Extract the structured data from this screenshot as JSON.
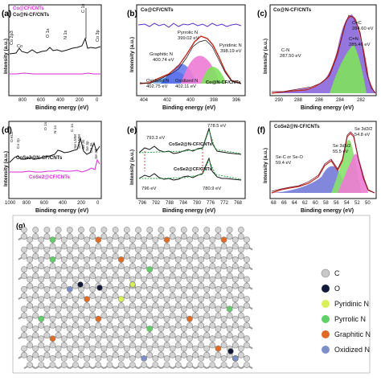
{
  "colors": {
    "black": "#111111",
    "magenta": "#d62bd6",
    "purple": "#5b2fc9",
    "red": "#c3271d",
    "blue": "#5f76ef",
    "pink": "#ee7bd6",
    "green": "#7fe25d",
    "lightPurple": "#8c6adb",
    "wine": "#6a0f2c",
    "orange": "#e06b25",
    "navy": "#111a3a",
    "graphene": "#c8c8c8"
  },
  "chart_data": [
    {
      "panel": "(a)",
      "type": "line",
      "xlabel": "Binding energy (eV)",
      "ylabel": "Intensity (a.u.)",
      "xlim": [
        1000,
        0
      ],
      "xticks": [
        "800",
        "600",
        "400",
        "200",
        "0"
      ],
      "legend": [
        "Co@CF/CNTs",
        "Co@N-CF/CNTs"
      ],
      "annotations": [
        "Co 2p3",
        "O 1s",
        "N 1s",
        "C 1s",
        "Co 3p",
        "Co"
      ],
      "series": [
        {
          "name": "Co@CF/CNTs",
          "color": "magenta"
        },
        {
          "name": "Co@N-CF/CNTs",
          "color": "black"
        }
      ]
    },
    {
      "panel": "(b)",
      "type": "line",
      "legend": [
        "Co@CF/CNTs"
      ],
      "xlabel": "Binding energy (eV)",
      "ylabel": "Intensity (a.u.)",
      "xticks": [
        "404",
        "402",
        "400",
        "398",
        "396"
      ],
      "peaks": [
        {
          "name": "Graphitic N",
          "energy": "400.74 eV"
        },
        {
          "name": "Pyrrolic N",
          "energy": "399.02 eV"
        },
        {
          "name": "Pyridinic N",
          "energy": "398.19 eV"
        },
        {
          "name": "Oxidized N",
          "energy": "402.75 eV"
        },
        {
          "name": "Oxidized N",
          "energy": "402.11 eV"
        }
      ],
      "label_bottom": "Co@N-CF/CNTs"
    },
    {
      "panel": "(c)",
      "type": "line",
      "legend": [
        "Co@N-CF/CNTs"
      ],
      "xlabel": "Binding energy (eV)",
      "ylabel": "Intensity (a.u.)",
      "xticks": [
        "290",
        "288",
        "286",
        "284",
        "282"
      ],
      "peaks": [
        {
          "name": "C=C",
          "energy": "284.60 eV"
        },
        {
          "name": "C=N",
          "energy": "285.46 eV"
        },
        {
          "name": "C-N",
          "energy": "287.50 eV"
        }
      ]
    },
    {
      "panel": "(d)",
      "type": "line",
      "xlabel": "Binding energy (eV)",
      "ylabel": "Intensity (a.u.)",
      "xticks": [
        "1000",
        "800",
        "600",
        "400",
        "200",
        "0"
      ],
      "legend": [
        "CoSe2@N-CF/CNTs",
        "CoSe2@CF/CNTs"
      ],
      "annotations": [
        "O KLL",
        "Co 2p",
        "O 1s",
        "N 1s",
        "C 1s",
        "Se LMM",
        "Se LMM",
        "Se 3s",
        "Se 3p",
        "Co 3s",
        "Se 3d"
      ]
    },
    {
      "panel": "(e)",
      "type": "line",
      "xlabel": "Binding energy (eV)",
      "ylabel": "Intensity (a.u.)",
      "xticks": [
        "796",
        "792",
        "788",
        "784",
        "780",
        "776",
        "772",
        "768"
      ],
      "legend": [
        "CoSe2@N-CF/CNTs",
        "CoSe2@CF/CNTs"
      ],
      "peaks": [
        "793.3 eV",
        "778.5 eV",
        "796 eV",
        "780.9 eV"
      ]
    },
    {
      "panel": "(f)",
      "type": "line",
      "legend": [
        "CoSe2@N-CF/CNTs"
      ],
      "xlabel": "Binding energy (eV)",
      "ylabel": "Intensity (a.u.)",
      "xticks": [
        "68",
        "66",
        "64",
        "62",
        "60",
        "58",
        "56",
        "54",
        "52",
        "50"
      ],
      "peaks": [
        {
          "name": "Se-C or Se-O",
          "energy": "59.4 eV"
        },
        {
          "name": "Se 3d5/2",
          "energy": "55.5 eV"
        },
        {
          "name": "Se 3d3/2",
          "energy": "54.8 eV"
        }
      ]
    }
  ],
  "panel_g": {
    "label": "(g)",
    "legend": [
      {
        "name": "C",
        "color": "graphene"
      },
      {
        "name": "O",
        "color": "navy"
      },
      {
        "name": "Pyridinic N",
        "color": "#d9ef58"
      },
      {
        "name": "Pyrrolic N",
        "color": "#61cf68"
      },
      {
        "name": "Graphitic N",
        "color": "orange"
      },
      {
        "name": "Oxidized N",
        "color": "#7c8fc8"
      }
    ]
  }
}
